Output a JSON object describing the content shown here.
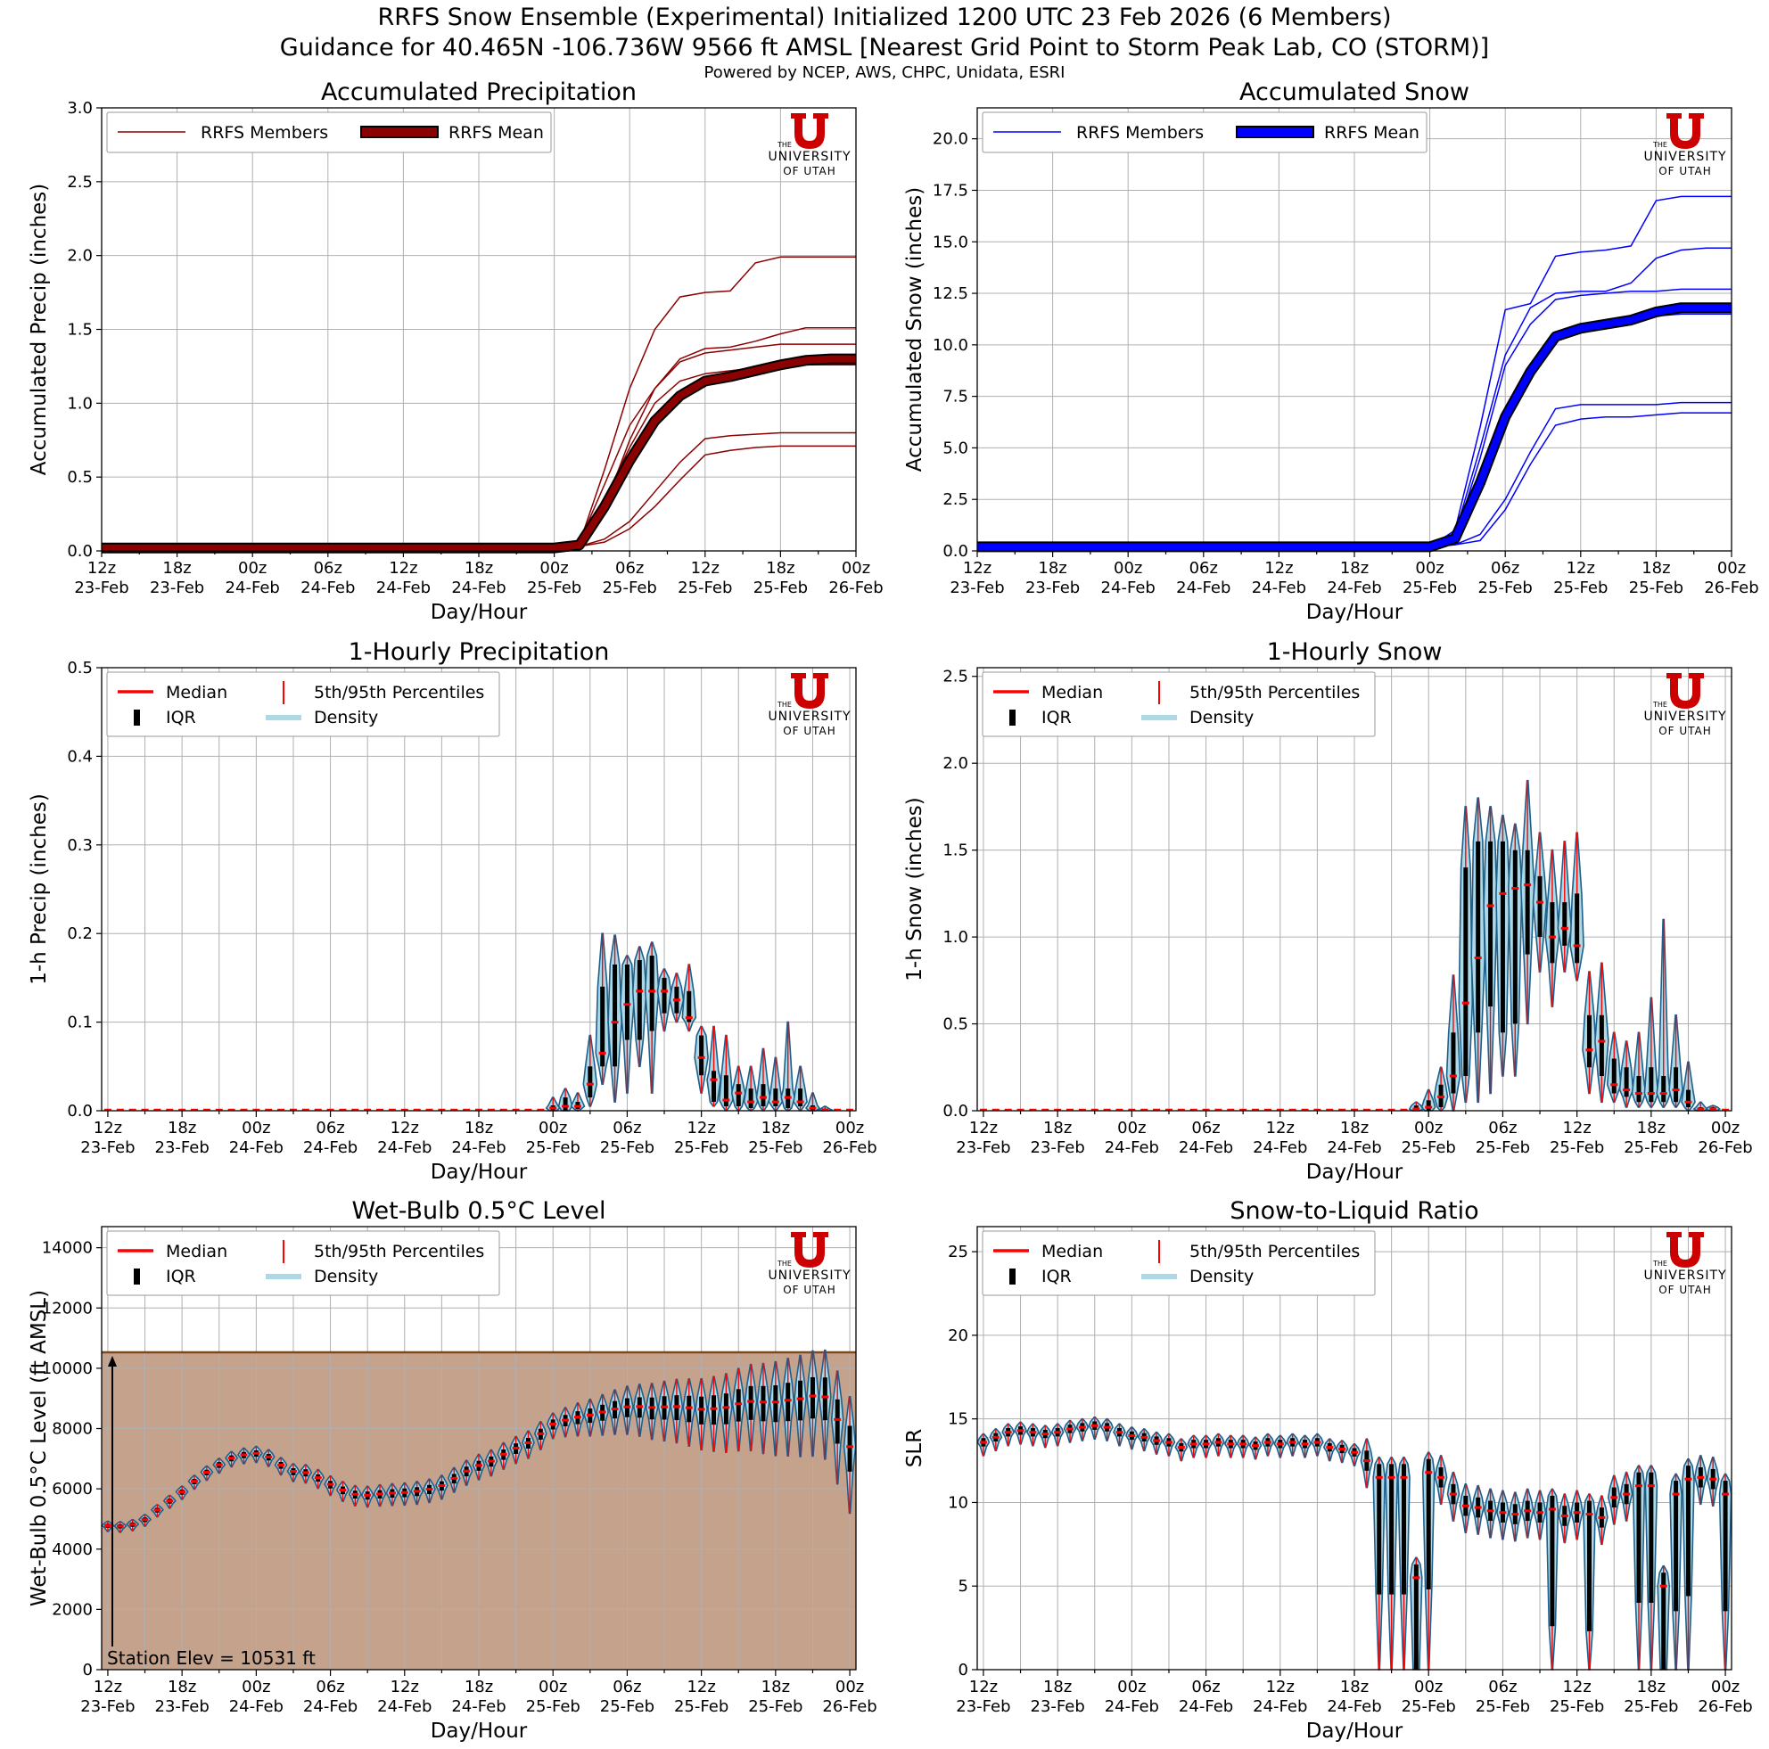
{
  "header": {
    "title_line1": "RRFS Snow Ensemble (Experimental) Initialized 1200 UTC 23 Feb 2026 (6 Members)",
    "title_line2": "Guidance for 40.465N -106.736W 9566 ft AMSL [Nearest Grid Point to Storm Peak Lab, CO (STORM)]",
    "credits": "Powered by NCEP, AWS, CHPC, Unidata, ESRI"
  },
  "logo": {
    "letter": "U",
    "line1": "THE",
    "line2": "UNIVERSITY",
    "line3": "OF UTAH"
  },
  "colors": {
    "precip": "#8b0000",
    "snow": "#0000ff",
    "median": "#ff0000",
    "density": "#add8e6",
    "density_edge": "#1f5f8b",
    "ground": "#c4a28b",
    "ground_edge": "#7b4a1e"
  },
  "x_ticks": [
    {
      "top": "12z",
      "bottom": "23-Feb"
    },
    {
      "top": "18z",
      "bottom": "23-Feb"
    },
    {
      "top": "00z",
      "bottom": "24-Feb"
    },
    {
      "top": "06z",
      "bottom": "24-Feb"
    },
    {
      "top": "12z",
      "bottom": "24-Feb"
    },
    {
      "top": "18z",
      "bottom": "24-Feb"
    },
    {
      "top": "00z",
      "bottom": "25-Feb"
    },
    {
      "top": "06z",
      "bottom": "25-Feb"
    },
    {
      "top": "12z",
      "bottom": "25-Feb"
    },
    {
      "top": "18z",
      "bottom": "25-Feb"
    },
    {
      "top": "00z",
      "bottom": "26-Feb"
    }
  ],
  "chart_data": [
    {
      "id": "acc_precip",
      "type": "line",
      "title": "Accumulated Precipitation",
      "xlabel": "Day/Hour",
      "ylabel": "Accumulated Precip (inches)",
      "xlim": [
        0,
        60
      ],
      "ylim": [
        0,
        3.0
      ],
      "yticks": [
        "0.0",
        "0.5",
        "1.0",
        "1.5",
        "2.0",
        "2.5",
        "3.0"
      ],
      "legend": [
        "RRFS Members",
        "RRFS Mean"
      ],
      "legend_location": "top-left",
      "x_hours": [
        0,
        36,
        38,
        40,
        42,
        44,
        46,
        48,
        50,
        52,
        54,
        56,
        58,
        60
      ],
      "members": [
        [
          0.02,
          0.02,
          0.05,
          0.55,
          1.1,
          1.5,
          1.72,
          1.75,
          1.76,
          1.95,
          1.99,
          1.99,
          1.99,
          1.99
        ],
        [
          0.02,
          0.02,
          0.06,
          0.45,
          0.85,
          1.1,
          1.3,
          1.37,
          1.38,
          1.42,
          1.47,
          1.51,
          1.51,
          1.51
        ],
        [
          0.02,
          0.02,
          0.04,
          0.3,
          0.75,
          1.1,
          1.28,
          1.34,
          1.36,
          1.38,
          1.4,
          1.4,
          1.4,
          1.4
        ],
        [
          0.02,
          0.02,
          0.04,
          0.35,
          0.7,
          1.0,
          1.15,
          1.2,
          1.22,
          1.24,
          1.25,
          1.26,
          1.26,
          1.26
        ],
        [
          0.02,
          0.02,
          0.03,
          0.08,
          0.2,
          0.4,
          0.6,
          0.76,
          0.78,
          0.79,
          0.8,
          0.8,
          0.8,
          0.8
        ],
        [
          0.02,
          0.02,
          0.03,
          0.06,
          0.15,
          0.3,
          0.48,
          0.65,
          0.68,
          0.7,
          0.71,
          0.71,
          0.71,
          0.71
        ]
      ],
      "mean": [
        0.02,
        0.02,
        0.04,
        0.3,
        0.61,
        0.88,
        1.05,
        1.15,
        1.18,
        1.22,
        1.26,
        1.29,
        1.3,
        1.3
      ]
    },
    {
      "id": "acc_snow",
      "type": "line",
      "title": "Accumulated Snow",
      "xlabel": "Day/Hour",
      "ylabel": "Accumulated Snow (inches)",
      "xlim": [
        0,
        60
      ],
      "ylim": [
        0,
        21.5
      ],
      "yticks": [
        "0.0",
        "2.5",
        "5.0",
        "7.5",
        "10.0",
        "12.5",
        "15.0",
        "17.5",
        "20.0"
      ],
      "legend": [
        "RRFS Members",
        "RRFS Mean"
      ],
      "legend_location": "top-left",
      "x_hours": [
        0,
        36,
        38,
        40,
        42,
        44,
        46,
        48,
        50,
        52,
        54,
        56,
        58,
        60
      ],
      "members": [
        [
          0.2,
          0.2,
          1.0,
          6.0,
          11.7,
          12.0,
          14.3,
          14.5,
          14.6,
          14.8,
          17.0,
          17.2,
          17.2,
          17.2
        ],
        [
          0.2,
          0.2,
          0.8,
          5.0,
          9.5,
          11.8,
          12.5,
          12.6,
          12.6,
          13.0,
          14.2,
          14.6,
          14.7,
          14.7
        ],
        [
          0.2,
          0.2,
          0.6,
          4.5,
          9.0,
          11.0,
          12.2,
          12.4,
          12.5,
          12.6,
          12.6,
          12.7,
          12.7,
          12.7
        ],
        [
          0.2,
          0.2,
          0.5,
          3.0,
          6.5,
          8.5,
          10.5,
          11.0,
          11.2,
          11.3,
          11.4,
          11.5,
          11.5,
          11.5
        ],
        [
          0.2,
          0.2,
          0.3,
          0.8,
          2.5,
          4.8,
          6.9,
          7.1,
          7.1,
          7.1,
          7.1,
          7.2,
          7.2,
          7.2
        ],
        [
          0.2,
          0.2,
          0.3,
          0.5,
          2.0,
          4.2,
          6.1,
          6.4,
          6.5,
          6.5,
          6.6,
          6.7,
          6.7,
          6.7
        ]
      ],
      "mean": [
        0.2,
        0.2,
        0.6,
        3.3,
        6.5,
        8.7,
        10.4,
        10.8,
        11.0,
        11.2,
        11.6,
        11.8,
        11.8,
        11.8
      ]
    },
    {
      "id": "hr_precip",
      "type": "violin",
      "title": "1-Hourly Precipitation",
      "xlabel": "Day/Hour",
      "ylabel": "1-h Precip (inches)",
      "xlim": [
        -0.5,
        60.5
      ],
      "ylim": [
        0,
        0.5
      ],
      "yticks": [
        "0.0",
        "0.1",
        "0.2",
        "0.3",
        "0.4",
        "0.5"
      ],
      "legend": [
        "Median",
        "IQR",
        "5th/95th Percentiles",
        "Density"
      ],
      "legend_location": "top-left",
      "series": [
        {
          "h": 36,
          "min": 0,
          "q1": 0,
          "med": 0.003,
          "q3": 0.006,
          "max": 0.015
        },
        {
          "h": 37,
          "min": 0,
          "q1": 0,
          "med": 0.005,
          "q3": 0.015,
          "max": 0.025
        },
        {
          "h": 38,
          "min": 0,
          "q1": 0.002,
          "med": 0.005,
          "q3": 0.01,
          "max": 0.02
        },
        {
          "h": 39,
          "min": 0.005,
          "q1": 0.015,
          "med": 0.03,
          "q3": 0.05,
          "max": 0.085
        },
        {
          "h": 40,
          "min": 0.03,
          "q1": 0.05,
          "med": 0.065,
          "q3": 0.14,
          "max": 0.2
        },
        {
          "h": 41,
          "min": 0.01,
          "q1": 0.05,
          "med": 0.1,
          "q3": 0.165,
          "max": 0.198
        },
        {
          "h": 42,
          "min": 0.02,
          "q1": 0.08,
          "med": 0.12,
          "q3": 0.165,
          "max": 0.175
        },
        {
          "h": 43,
          "min": 0.05,
          "q1": 0.08,
          "med": 0.135,
          "q3": 0.17,
          "max": 0.185
        },
        {
          "h": 44,
          "min": 0.02,
          "q1": 0.09,
          "med": 0.135,
          "q3": 0.175,
          "max": 0.19
        },
        {
          "h": 45,
          "min": 0.09,
          "q1": 0.11,
          "med": 0.135,
          "q3": 0.15,
          "max": 0.16
        },
        {
          "h": 46,
          "min": 0.1,
          "q1": 0.11,
          "med": 0.125,
          "q3": 0.14,
          "max": 0.155
        },
        {
          "h": 47,
          "min": 0.09,
          "q1": 0.1,
          "med": 0.105,
          "q3": 0.135,
          "max": 0.165
        },
        {
          "h": 48,
          "min": 0.02,
          "q1": 0.04,
          "med": 0.06,
          "q3": 0.085,
          "max": 0.095
        },
        {
          "h": 49,
          "min": 0.005,
          "q1": 0.01,
          "med": 0.035,
          "q3": 0.045,
          "max": 0.095
        },
        {
          "h": 50,
          "min": 0,
          "q1": 0.005,
          "med": 0.012,
          "q3": 0.04,
          "max": 0.085
        },
        {
          "h": 51,
          "min": 0,
          "q1": 0.005,
          "med": 0.02,
          "q3": 0.03,
          "max": 0.05
        },
        {
          "h": 52,
          "min": 0,
          "q1": 0.003,
          "med": 0.01,
          "q3": 0.025,
          "max": 0.05
        },
        {
          "h": 53,
          "min": 0,
          "q1": 0.005,
          "med": 0.015,
          "q3": 0.03,
          "max": 0.07
        },
        {
          "h": 54,
          "min": 0,
          "q1": 0.005,
          "med": 0.01,
          "q3": 0.025,
          "max": 0.06
        },
        {
          "h": 55,
          "min": 0,
          "q1": 0.003,
          "med": 0.015,
          "q3": 0.025,
          "max": 0.1
        },
        {
          "h": 56,
          "min": 0,
          "q1": 0.005,
          "med": 0.01,
          "q3": 0.025,
          "max": 0.05
        },
        {
          "h": 57,
          "min": 0,
          "q1": 0,
          "med": 0.003,
          "q3": 0.006,
          "max": 0.02
        },
        {
          "h": 58,
          "min": 0,
          "q1": 0,
          "med": 0.001,
          "q3": 0.002,
          "max": 0.005
        }
      ]
    },
    {
      "id": "hr_snow",
      "type": "violin",
      "title": "1-Hourly Snow",
      "xlabel": "Day/Hour",
      "ylabel": "1-h Snow (inches)",
      "xlim": [
        -0.5,
        60.5
      ],
      "ylim": [
        0,
        2.55
      ],
      "yticks": [
        "0.0",
        "0.5",
        "1.0",
        "1.5",
        "2.0",
        "2.5"
      ],
      "legend": [
        "Median",
        "IQR",
        "5th/95th Percentiles",
        "Density"
      ],
      "legend_location": "top-left",
      "series": [
        {
          "h": 35,
          "min": 0,
          "q1": 0,
          "med": 0.01,
          "q3": 0.03,
          "max": 0.05
        },
        {
          "h": 36,
          "min": 0,
          "q1": 0,
          "med": 0.02,
          "q3": 0.06,
          "max": 0.12
        },
        {
          "h": 37,
          "min": 0,
          "q1": 0.02,
          "med": 0.08,
          "q3": 0.15,
          "max": 0.25
        },
        {
          "h": 38,
          "min": 0,
          "q1": 0.1,
          "med": 0.2,
          "q3": 0.45,
          "max": 0.78
        },
        {
          "h": 39,
          "min": 0.05,
          "q1": 0.2,
          "med": 0.62,
          "q3": 1.4,
          "max": 1.75
        },
        {
          "h": 40,
          "min": 0.05,
          "q1": 0.45,
          "med": 0.88,
          "q3": 1.55,
          "max": 1.8
        },
        {
          "h": 41,
          "min": 0.1,
          "q1": 0.6,
          "med": 1.18,
          "q3": 1.55,
          "max": 1.75
        },
        {
          "h": 42,
          "min": 0.2,
          "q1": 0.45,
          "med": 1.25,
          "q3": 1.55,
          "max": 1.7
        },
        {
          "h": 43,
          "min": 0.2,
          "q1": 0.5,
          "med": 1.28,
          "q3": 1.5,
          "max": 1.65
        },
        {
          "h": 44,
          "min": 0.5,
          "q1": 0.9,
          "med": 1.3,
          "q3": 1.5,
          "max": 1.9
        },
        {
          "h": 45,
          "min": 0.8,
          "q1": 1.0,
          "med": 1.2,
          "q3": 1.35,
          "max": 1.6
        },
        {
          "h": 46,
          "min": 0.6,
          "q1": 0.85,
          "med": 1.0,
          "q3": 1.2,
          "max": 1.5
        },
        {
          "h": 47,
          "min": 0.8,
          "q1": 0.95,
          "med": 1.05,
          "q3": 1.2,
          "max": 1.55
        },
        {
          "h": 48,
          "min": 0.75,
          "q1": 0.85,
          "med": 0.95,
          "q3": 1.25,
          "max": 1.6
        },
        {
          "h": 49,
          "min": 0.1,
          "q1": 0.25,
          "med": 0.35,
          "q3": 0.55,
          "max": 0.8
        },
        {
          "h": 50,
          "min": 0.05,
          "q1": 0.2,
          "med": 0.4,
          "q3": 0.55,
          "max": 0.85
        },
        {
          "h": 51,
          "min": 0.05,
          "q1": 0.1,
          "med": 0.15,
          "q3": 0.3,
          "max": 0.45
        },
        {
          "h": 52,
          "min": 0.02,
          "q1": 0.08,
          "med": 0.12,
          "q3": 0.25,
          "max": 0.4
        },
        {
          "h": 53,
          "min": 0.02,
          "q1": 0.05,
          "med": 0.1,
          "q3": 0.2,
          "max": 0.45
        },
        {
          "h": 54,
          "min": 0.02,
          "q1": 0.05,
          "med": 0.1,
          "q3": 0.25,
          "max": 0.65
        },
        {
          "h": 55,
          "min": 0.02,
          "q1": 0.05,
          "med": 0.1,
          "q3": 0.2,
          "max": 1.1
        },
        {
          "h": 56,
          "min": 0.02,
          "q1": 0.05,
          "med": 0.12,
          "q3": 0.25,
          "max": 0.55
        },
        {
          "h": 57,
          "min": 0,
          "q1": 0.02,
          "med": 0.05,
          "q3": 0.12,
          "max": 0.28
        },
        {
          "h": 58,
          "min": 0,
          "q1": 0,
          "med": 0.01,
          "q3": 0.02,
          "max": 0.05
        },
        {
          "h": 59,
          "min": 0,
          "q1": 0,
          "med": 0.01,
          "q3": 0.02,
          "max": 0.03
        }
      ]
    },
    {
      "id": "wetbulb",
      "type": "violin",
      "title": "Wet-Bulb 0.5°C Level",
      "xlabel": "Day/Hour",
      "ylabel": "Wet-Bulb 0.5°C Level (ft AMSL)",
      "xlim": [
        -0.5,
        60.5
      ],
      "ylim": [
        0,
        14700
      ],
      "yticks": [
        "0",
        "2000",
        "4000",
        "6000",
        "8000",
        "10000",
        "12000",
        "14000"
      ],
      "legend": [
        "Median",
        "IQR",
        "5th/95th Percentiles",
        "Density"
      ],
      "legend_location": "top-left",
      "station_elevation_ft": 10531,
      "station_label": "Station Elev = 10531 ft",
      "medians": [
        4780,
        4760,
        4820,
        4980,
        5300,
        5600,
        5900,
        6250,
        6550,
        6800,
        7020,
        7130,
        7180,
        7060,
        6790,
        6580,
        6540,
        6370,
        6150,
        5960,
        5820,
        5790,
        5830,
        5860,
        5880,
        5920,
        5990,
        6110,
        6350,
        6590,
        6780,
        6920,
        7150,
        7350,
        7530,
        7830,
        8150,
        8280,
        8380,
        8450,
        8550,
        8650,
        8720,
        8730,
        8700,
        8720,
        8730,
        8690,
        8640,
        8660,
        8700,
        8820,
        8900,
        8880,
        8880,
        8940,
        8990,
        9080,
        9050,
        8300,
        7400
      ]
    },
    {
      "id": "slr",
      "type": "violin",
      "title": "Snow-to-Liquid Ratio",
      "xlabel": "Day/Hour",
      "ylabel": "SLR",
      "xlim": [
        -0.5,
        60.5
      ],
      "ylim": [
        0,
        26.5
      ],
      "yticks": [
        "0",
        "5",
        "10",
        "15",
        "20",
        "25"
      ],
      "legend": [
        "Median",
        "IQR",
        "5th/95th Percentiles",
        "Density"
      ],
      "legend_location": "top-left",
      "medians": [
        13.6,
        13.9,
        14.2,
        14.3,
        14.2,
        14.1,
        14.2,
        14.4,
        14.5,
        14.6,
        14.5,
        14.2,
        14.0,
        13.9,
        13.7,
        13.6,
        13.3,
        13.5,
        13.5,
        13.6,
        13.5,
        13.5,
        13.4,
        13.6,
        13.5,
        13.6,
        13.5,
        13.6,
        13.3,
        13.2,
        13.0,
        12.5,
        11.5,
        11.5,
        11.5,
        5.5,
        11.8,
        11.5,
        10.5,
        9.8,
        9.7,
        9.5,
        9.4,
        9.3,
        9.5,
        9.4,
        9.6,
        9.2,
        9.4,
        9.3,
        9.1,
        10.3,
        10.5,
        11.0,
        11.0,
        5.0,
        10.5,
        11.4,
        11.5,
        11.4,
        10.5
      ],
      "low_spread_hours": [
        32,
        33,
        34,
        35,
        36,
        46,
        49,
        53,
        54,
        55,
        56,
        57,
        60
      ]
    }
  ]
}
